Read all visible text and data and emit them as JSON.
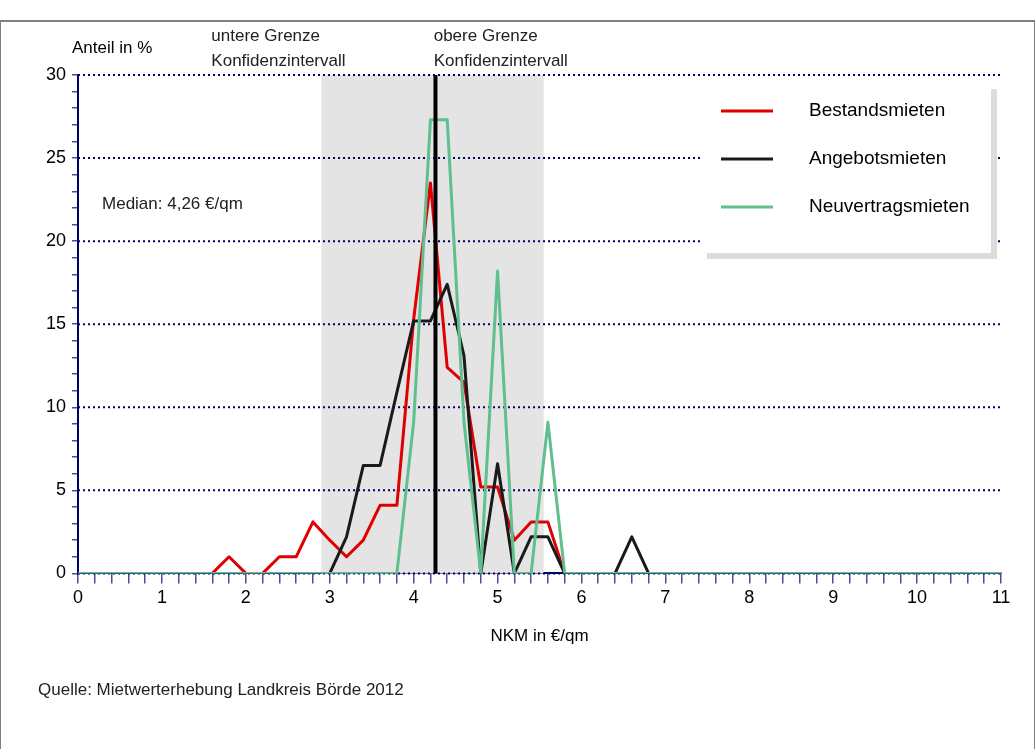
{
  "chart_data": {
    "type": "line",
    "xlabel": "NKM in €/qm",
    "ylabel": "Anteil in %",
    "x": [
      0,
      0.2,
      0.4,
      0.6,
      0.8,
      1,
      1.2,
      1.4,
      1.6,
      1.8,
      2,
      2.2,
      2.4,
      2.6,
      2.8,
      3,
      3.2,
      3.4,
      3.6,
      3.8,
      4,
      4.2,
      4.4,
      4.6,
      4.8,
      5,
      5.2,
      5.4,
      5.6,
      5.8,
      6,
      6.2,
      6.4,
      6.6,
      6.8,
      7,
      7.2,
      7.4,
      7.6,
      7.8,
      8,
      8.2,
      8.4,
      8.6,
      8.8,
      9,
      9.2,
      9.4,
      9.6,
      9.8,
      10,
      10.2,
      10.4,
      10.6,
      10.8,
      11
    ],
    "series": [
      {
        "name": "Bestandsmieten",
        "color": "#e00000",
        "values": [
          null,
          null,
          null,
          null,
          null,
          null,
          null,
          null,
          0,
          1,
          0,
          0,
          1,
          1,
          3.1,
          2,
          1,
          2,
          4.1,
          4.1,
          15.3,
          23.5,
          12.4,
          11.5,
          5.2,
          5.2,
          2,
          3.1,
          3.1,
          0,
          null,
          null,
          null,
          null,
          null,
          null,
          null,
          null,
          null,
          null,
          null,
          null,
          null,
          null,
          null,
          null,
          null,
          null,
          null,
          null,
          null,
          null,
          null,
          null,
          null,
          null
        ]
      },
      {
        "name": "Angebotsmieten",
        "color": "#1a1a1a",
        "values": [
          null,
          null,
          null,
          null,
          null,
          null,
          null,
          null,
          null,
          null,
          null,
          null,
          null,
          null,
          null,
          0,
          2.2,
          6.5,
          6.5,
          10.9,
          15.2,
          15.2,
          17.4,
          13.1,
          0,
          6.6,
          0,
          2.2,
          2.2,
          0,
          null,
          null,
          0,
          2.2,
          0,
          null,
          null,
          null,
          null,
          null,
          null,
          null,
          null,
          null,
          null,
          null,
          null,
          null,
          null,
          null,
          null,
          null,
          null,
          null,
          null,
          null
        ]
      },
      {
        "name": "Neuvertragsmieten",
        "color": "#5fbf8f",
        "values": [
          0,
          0,
          0,
          0,
          0,
          0,
          0,
          0,
          0,
          0,
          0,
          0,
          0,
          0,
          0,
          0,
          0,
          0,
          0,
          0,
          9.1,
          27.3,
          27.3,
          9.1,
          0,
          18.2,
          0,
          0,
          9.1,
          0,
          0,
          0,
          0,
          0,
          0,
          0,
          0,
          0,
          0,
          0,
          0,
          0,
          0,
          0,
          0,
          0,
          0,
          0,
          0,
          0,
          0,
          0,
          0,
          0,
          0,
          0
        ]
      }
    ],
    "xlim": [
      0,
      11
    ],
    "xticks": [
      0,
      {
        "value": 0.2,
        "label": null
      },
      {
        "value": 0.4,
        "label": null
      },
      {
        "value": 0.6,
        "label": null
      },
      {
        "value": 0.8,
        "label": null
      },
      1,
      {
        "value": 1.2,
        "label": null
      },
      {
        "value": 1.4,
        "label": null
      },
      {
        "value": 1.6,
        "label": null
      },
      {
        "value": 1.8,
        "label": null
      },
      2,
      {
        "value": 2.2,
        "label": null
      },
      {
        "value": 2.4,
        "label": null
      },
      {
        "value": 2.6,
        "label": null
      },
      {
        "value": 2.8,
        "label": null
      },
      3,
      {
        "value": 3.2,
        "label": null
      },
      {
        "value": 3.4,
        "label": null
      },
      {
        "value": 3.6,
        "label": null
      },
      {
        "value": 3.8,
        "label": null
      },
      4,
      {
        "value": 4.2,
        "label": null
      },
      {
        "value": 4.4,
        "label": null
      },
      {
        "value": 4.6,
        "label": null
      },
      {
        "value": 4.8,
        "label": null
      },
      5,
      {
        "value": 5.2,
        "label": null
      },
      {
        "value": 5.4,
        "label": null
      },
      {
        "value": 5.6,
        "label": null
      },
      {
        "value": 5.8,
        "label": null
      },
      6,
      {
        "value": 6.2,
        "label": null
      },
      {
        "value": 6.4,
        "label": null
      },
      {
        "value": 6.6,
        "label": null
      },
      {
        "value": 6.8,
        "label": null
      },
      7,
      {
        "value": 7.2,
        "label": null
      },
      {
        "value": 7.4,
        "label": null
      },
      {
        "value": 7.6,
        "label": null
      },
      {
        "value": 7.8,
        "label": null
      },
      8,
      {
        "value": 8.2,
        "label": null
      },
      {
        "value": 8.4,
        "label": null
      },
      {
        "value": 8.6,
        "label": null
      },
      {
        "value": 8.8,
        "label": null
      },
      9,
      {
        "value": 9.2,
        "label": null
      },
      {
        "value": 9.4,
        "label": null
      },
      {
        "value": 9.6,
        "label": null
      },
      {
        "value": 9.8,
        "label": null
      },
      10,
      {
        "value": 10.2,
        "label": null
      },
      {
        "value": 10.4,
        "label": null
      },
      {
        "value": 10.6,
        "label": null
      },
      {
        "value": 10.8,
        "label": null
      },
      11
    ],
    "ylim": [
      0,
      30
    ],
    "yticks": [
      0,
      {
        "value": 1,
        "label": null
      },
      {
        "value": 2,
        "label": null
      },
      {
        "value": 3,
        "label": null
      },
      {
        "value": 4,
        "label": null
      },
      5,
      {
        "value": 6,
        "label": null
      },
      {
        "value": 7,
        "label": null
      },
      {
        "value": 8,
        "label": null
      },
      {
        "value": 9,
        "label": null
      },
      10,
      {
        "value": 11,
        "label": null
      },
      {
        "value": 12,
        "label": null
      },
      {
        "value": 13,
        "label": null
      },
      {
        "value": 14,
        "label": null
      },
      15,
      {
        "value": 16,
        "label": null
      },
      {
        "value": 17,
        "label": null
      },
      {
        "value": 18,
        "label": null
      },
      {
        "value": 19,
        "label": null
      },
      20,
      {
        "value": 21,
        "label": null
      },
      {
        "value": 22,
        "label": null
      },
      {
        "value": 23,
        "label": null
      },
      {
        "value": 24,
        "label": null
      },
      25,
      {
        "value": 26,
        "label": null
      },
      {
        "value": 27,
        "label": null
      },
      {
        "value": 28,
        "label": null
      },
      {
        "value": 29,
        "label": null
      },
      30
    ],
    "grid": "y",
    "legend": "top right",
    "marker": "none",
    "line_style": "solid",
    "ref_lines": [
      {
        "axis": "x",
        "value": 4.26,
        "color": "#000000"
      }
    ],
    "bands": [
      {
        "axis": "x",
        "from": 2.9,
        "to": 5.55,
        "color": "#e4e4e4"
      }
    ],
    "annotations": [
      "Median: 4,26 €/qm",
      {
        "text": "untere Grenze Konfidenzintervall",
        "x": 2.9,
        "y": 30
      },
      {
        "text": "obere Grenze Konfidenzintervall",
        "x": 5.55,
        "y": 30
      },
      "Quelle: Mietwerterhebung Landkreis Börde 2012"
    ]
  }
}
